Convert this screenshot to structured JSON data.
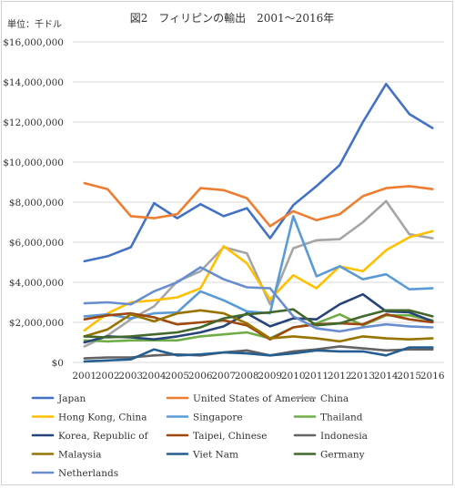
{
  "chart_data": {
    "type": "line",
    "title": "図2　フィリピンの輸出　2001〜2016年",
    "unit_label": "単位：千ドル",
    "x": [
      "2001",
      "2002",
      "2003",
      "2004",
      "2005",
      "2006",
      "2007",
      "2008",
      "2009",
      "2010",
      "2011",
      "2012",
      "2013",
      "2014",
      "2015",
      "2016"
    ],
    "ylim": [
      0,
      16000000
    ],
    "yticks": [
      "$0",
      "$2,000,000",
      "$4,000,000",
      "$6,000,000",
      "$8,000,000",
      "$10,000,000",
      "$12,000,000",
      "$14,000,000",
      "$16,000,000"
    ],
    "grid": true,
    "legend_position": "bottom",
    "series": [
      {
        "name": "Japan",
        "color": "#4472c4",
        "values": [
          5050000,
          5300000,
          5750000,
          7950000,
          7200000,
          7900000,
          7300000,
          7700000,
          6200000,
          7850000,
          8800000,
          9850000,
          12000000,
          13900000,
          12400000,
          11700000
        ]
      },
      {
        "name": "United States of America",
        "color": "#ed7d31",
        "values": [
          8950000,
          8650000,
          7300000,
          7200000,
          7400000,
          8700000,
          8600000,
          8200000,
          6800000,
          7550000,
          7100000,
          7400000,
          8300000,
          8700000,
          8800000,
          8650000
        ]
      },
      {
        "name": "China",
        "color": "#a5a5a5",
        "values": [
          800000,
          1350000,
          2150000,
          2800000,
          4050000,
          4550000,
          5750000,
          5450000,
          2900000,
          5700000,
          6100000,
          6150000,
          7000000,
          8050000,
          6400000,
          6200000
        ]
      },
      {
        "name": "Hong Kong, China",
        "color": "#ffc000",
        "values": [
          1600000,
          2450000,
          3000000,
          3100000,
          3250000,
          3700000,
          5800000,
          4950000,
          3150000,
          4350000,
          3700000,
          4800000,
          4550000,
          5600000,
          6250000,
          6550000
        ]
      },
      {
        "name": "Singapore",
        "color": "#5b9bd5",
        "values": [
          2300000,
          2400000,
          2200000,
          2450000,
          2500000,
          3550000,
          3100000,
          2550000,
          2450000,
          7300000,
          4300000,
          4800000,
          4150000,
          4400000,
          3650000,
          3700000
        ]
      },
      {
        "name": "Thailand",
        "color": "#70ad47",
        "values": [
          1100000,
          1050000,
          1100000,
          1100000,
          1100000,
          1300000,
          1400000,
          1500000,
          1200000,
          1750000,
          1950000,
          2400000,
          1850000,
          2350000,
          2350000,
          2100000
        ]
      },
      {
        "name": "Korea, Republic of",
        "color": "#264478",
        "values": [
          1000000,
          1300000,
          1250000,
          1150000,
          1300000,
          1500000,
          1800000,
          2450000,
          1800000,
          2200000,
          2150000,
          2900000,
          3400000,
          2550000,
          2500000,
          2050000
        ]
      },
      {
        "name": "Taipei, Chinese",
        "color": "#9e480e",
        "values": [
          2150000,
          2350000,
          2450000,
          2250000,
          1900000,
          2000000,
          2100000,
          1850000,
          1150000,
          1750000,
          1900000,
          1950000,
          1900000,
          2400000,
          2150000,
          2000000
        ]
      },
      {
        "name": "Indonesia",
        "color": "#636363",
        "values": [
          200000,
          250000,
          250000,
          350000,
          400000,
          350000,
          500000,
          600000,
          350000,
          550000,
          650000,
          800000,
          700000,
          600000,
          650000,
          650000
        ]
      },
      {
        "name": "Malaysia",
        "color": "#997300",
        "values": [
          1300000,
          1650000,
          2400000,
          2050000,
          2450000,
          2600000,
          2450000,
          1950000,
          1200000,
          1300000,
          1200000,
          1050000,
          1300000,
          1200000,
          1150000,
          1200000
        ]
      },
      {
        "name": "Viet Nam",
        "color": "#255e91",
        "values": [
          50000,
          100000,
          150000,
          650000,
          350000,
          400000,
          500000,
          450000,
          350000,
          450000,
          600000,
          550000,
          550000,
          350000,
          750000,
          750000
        ]
      },
      {
        "name": "Germany",
        "color": "#43682b",
        "values": [
          1300000,
          1250000,
          1300000,
          1400000,
          1500000,
          1750000,
          2200000,
          2400000,
          2500000,
          2650000,
          1850000,
          1950000,
          2300000,
          2600000,
          2600000,
          2300000
        ]
      },
      {
        "name": "Netherlands",
        "color": "#698ed0",
        "values": [
          2950000,
          3000000,
          2900000,
          3550000,
          4000000,
          4750000,
          4150000,
          3750000,
          3700000,
          2300000,
          1700000,
          1550000,
          1750000,
          1900000,
          1800000,
          1750000
        ]
      }
    ]
  }
}
